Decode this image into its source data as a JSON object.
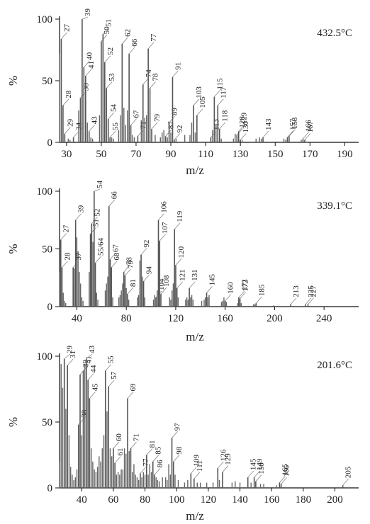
{
  "chart_data": [
    {
      "type": "bar",
      "title": "432.5°C",
      "xlabel": "m/z",
      "ylabel": "%",
      "xlim": [
        26,
        198
      ],
      "ylim": [
        0,
        100
      ],
      "xticks": [
        30,
        50,
        70,
        90,
        110,
        130,
        150,
        170,
        190
      ],
      "yticks": [
        0,
        50,
        100
      ],
      "labeled_peaks": [
        {
          "x": 27,
          "y": 84,
          "label": "27"
        },
        {
          "x": 28,
          "y": 30,
          "label": "28"
        },
        {
          "x": 29,
          "y": 7,
          "label": "29"
        },
        {
          "x": 34,
          "y": 4,
          "label": "34"
        },
        {
          "x": 38,
          "y": 36,
          "label": "38"
        },
        {
          "x": 39,
          "y": 100,
          "label": "39"
        },
        {
          "x": 40,
          "y": 61,
          "label": "40"
        },
        {
          "x": 41,
          "y": 54,
          "label": "41"
        },
        {
          "x": 43,
          "y": 9,
          "label": "43"
        },
        {
          "x": 50,
          "y": 82,
          "label": "50"
        },
        {
          "x": 51,
          "y": 88,
          "label": "51"
        },
        {
          "x": 52,
          "y": 65,
          "label": "52"
        },
        {
          "x": 53,
          "y": 44,
          "label": "53"
        },
        {
          "x": 54,
          "y": 19,
          "label": "54"
        },
        {
          "x": 55,
          "y": 4,
          "label": "55"
        },
        {
          "x": 62,
          "y": 80,
          "label": "62"
        },
        {
          "x": 66,
          "y": 72,
          "label": "66"
        },
        {
          "x": 67,
          "y": 14,
          "label": "67"
        },
        {
          "x": 71,
          "y": 5,
          "label": "71"
        },
        {
          "x": 74,
          "y": 47,
          "label": "74"
        },
        {
          "x": 77,
          "y": 76,
          "label": "77"
        },
        {
          "x": 78,
          "y": 44,
          "label": "78"
        },
        {
          "x": 79,
          "y": 11,
          "label": "79"
        },
        {
          "x": 87,
          "y": 5,
          "label": "87"
        },
        {
          "x": 89,
          "y": 16,
          "label": "89"
        },
        {
          "x": 91,
          "y": 53,
          "label": "91"
        },
        {
          "x": 92,
          "y": 2,
          "label": "92"
        },
        {
          "x": 103,
          "y": 30,
          "label": "103"
        },
        {
          "x": 105,
          "y": 22,
          "label": "105"
        },
        {
          "x": 113,
          "y": 4,
          "label": "113"
        },
        {
          "x": 115,
          "y": 37,
          "label": "115"
        },
        {
          "x": 117,
          "y": 30,
          "label": "117"
        },
        {
          "x": 118,
          "y": 11,
          "label": "118"
        },
        {
          "x": 128,
          "y": 6,
          "label": "128"
        },
        {
          "x": 129,
          "y": 9,
          "label": "129"
        },
        {
          "x": 130,
          "y": 2,
          "label": "130"
        },
        {
          "x": 143,
          "y": 4,
          "label": "143"
        },
        {
          "x": 157,
          "y": 4,
          "label": "157"
        },
        {
          "x": 158,
          "y": 5,
          "label": "158"
        },
        {
          "x": 166,
          "y": 3,
          "label": "166"
        },
        {
          "x": 167,
          "y": 2,
          "label": "167"
        }
      ],
      "minor_peaks": [
        {
          "x": 26,
          "y": 72
        },
        {
          "x": 31,
          "y": 3
        },
        {
          "x": 32,
          "y": 2
        },
        {
          "x": 37,
          "y": 26
        },
        {
          "x": 42,
          "y": 16
        },
        {
          "x": 44,
          "y": 4
        },
        {
          "x": 45,
          "y": 3
        },
        {
          "x": 49,
          "y": 22
        },
        {
          "x": 56,
          "y": 4
        },
        {
          "x": 57,
          "y": 3
        },
        {
          "x": 60,
          "y": 10
        },
        {
          "x": 61,
          "y": 22
        },
        {
          "x": 63,
          "y": 28
        },
        {
          "x": 64,
          "y": 14
        },
        {
          "x": 65,
          "y": 26
        },
        {
          "x": 68,
          "y": 6
        },
        {
          "x": 69,
          "y": 4
        },
        {
          "x": 73,
          "y": 18
        },
        {
          "x": 75,
          "y": 20
        },
        {
          "x": 76,
          "y": 22
        },
        {
          "x": 81,
          "y": 6
        },
        {
          "x": 84,
          "y": 4
        },
        {
          "x": 85,
          "y": 8
        },
        {
          "x": 86,
          "y": 10
        },
        {
          "x": 88,
          "y": 4
        },
        {
          "x": 90,
          "y": 8
        },
        {
          "x": 93,
          "y": 3
        },
        {
          "x": 98,
          "y": 6
        },
        {
          "x": 101,
          "y": 6
        },
        {
          "x": 102,
          "y": 16
        },
        {
          "x": 104,
          "y": 8
        },
        {
          "x": 114,
          "y": 10
        },
        {
          "x": 116,
          "y": 14
        },
        {
          "x": 119,
          "y": 3
        },
        {
          "x": 126,
          "y": 3
        },
        {
          "x": 127,
          "y": 7
        },
        {
          "x": 131,
          "y": 2
        },
        {
          "x": 139,
          "y": 3
        },
        {
          "x": 141,
          "y": 4
        },
        {
          "x": 142,
          "y": 3
        },
        {
          "x": 155,
          "y": 3
        },
        {
          "x": 156,
          "y": 2
        },
        {
          "x": 165,
          "y": 2
        }
      ]
    },
    {
      "type": "bar",
      "title": "339.1°C",
      "xlabel": "m/z",
      "ylabel": "%",
      "xlim": [
        26,
        268
      ],
      "ylim": [
        0,
        100
      ],
      "xticks": [
        40,
        80,
        120,
        160,
        200,
        240
      ],
      "yticks": [
        0,
        50,
        100
      ],
      "labeled_peaks": [
        {
          "x": 27,
          "y": 58,
          "label": "27"
        },
        {
          "x": 28,
          "y": 34,
          "label": "28"
        },
        {
          "x": 37,
          "y": 34,
          "label": "37"
        },
        {
          "x": 39,
          "y": 75,
          "label": "39"
        },
        {
          "x": 51,
          "y": 63,
          "label": "51"
        },
        {
          "x": 52,
          "y": 72,
          "label": "52"
        },
        {
          "x": 54,
          "y": 100,
          "label": "54"
        },
        {
          "x": 55,
          "y": 38,
          "label": "55/64"
        },
        {
          "x": 66,
          "y": 87,
          "label": "66"
        },
        {
          "x": 67,
          "y": 41,
          "label": "67"
        },
        {
          "x": 68,
          "y": 34,
          "label": "68"
        },
        {
          "x": 78,
          "y": 30,
          "label": "78"
        },
        {
          "x": 79,
          "y": 27,
          "label": "79"
        },
        {
          "x": 81,
          "y": 11,
          "label": "81"
        },
        {
          "x": 92,
          "y": 45,
          "label": "92"
        },
        {
          "x": 94,
          "y": 22,
          "label": "94"
        },
        {
          "x": 104,
          "y": 8,
          "label": "104"
        },
        {
          "x": 106,
          "y": 75,
          "label": "106"
        },
        {
          "x": 107,
          "y": 57,
          "label": "107"
        },
        {
          "x": 108,
          "y": 11,
          "label": "108"
        },
        {
          "x": 119,
          "y": 67,
          "label": "119"
        },
        {
          "x": 120,
          "y": 36,
          "label": "120"
        },
        {
          "x": 121,
          "y": 16,
          "label": "121"
        },
        {
          "x": 131,
          "y": 16,
          "label": "131"
        },
        {
          "x": 145,
          "y": 12,
          "label": "145"
        },
        {
          "x": 160,
          "y": 5,
          "label": "160"
        },
        {
          "x": 171,
          "y": 8,
          "label": "171"
        },
        {
          "x": 172,
          "y": 7,
          "label": "172"
        },
        {
          "x": 185,
          "y": 3,
          "label": "185"
        },
        {
          "x": 213,
          "y": 2,
          "label": "213"
        },
        {
          "x": 225,
          "y": 2,
          "label": "225"
        },
        {
          "x": 227,
          "y": 2,
          "label": "227"
        }
      ],
      "minor_peaks": [
        {
          "x": 26,
          "y": 30
        },
        {
          "x": 29,
          "y": 12
        },
        {
          "x": 30,
          "y": 5
        },
        {
          "x": 31,
          "y": 3
        },
        {
          "x": 38,
          "y": 33
        },
        {
          "x": 40,
          "y": 60
        },
        {
          "x": 41,
          "y": 48
        },
        {
          "x": 42,
          "y": 30
        },
        {
          "x": 43,
          "y": 20
        },
        {
          "x": 44,
          "y": 8
        },
        {
          "x": 45,
          "y": 5
        },
        {
          "x": 50,
          "y": 30
        },
        {
          "x": 53,
          "y": 56
        },
        {
          "x": 56,
          "y": 12
        },
        {
          "x": 57,
          "y": 6
        },
        {
          "x": 63,
          "y": 14
        },
        {
          "x": 64,
          "y": 20
        },
        {
          "x": 65,
          "y": 26
        },
        {
          "x": 69,
          "y": 8
        },
        {
          "x": 74,
          "y": 8
        },
        {
          "x": 75,
          "y": 10
        },
        {
          "x": 76,
          "y": 14
        },
        {
          "x": 77,
          "y": 20
        },
        {
          "x": 80,
          "y": 16
        },
        {
          "x": 82,
          "y": 6
        },
        {
          "x": 89,
          "y": 8
        },
        {
          "x": 90,
          "y": 10
        },
        {
          "x": 91,
          "y": 40
        },
        {
          "x": 93,
          "y": 26
        },
        {
          "x": 95,
          "y": 8
        },
        {
          "x": 102,
          "y": 6
        },
        {
          "x": 103,
          "y": 10
        },
        {
          "x": 105,
          "y": 14
        },
        {
          "x": 115,
          "y": 8
        },
        {
          "x": 116,
          "y": 6
        },
        {
          "x": 117,
          "y": 14
        },
        {
          "x": 118,
          "y": 20
        },
        {
          "x": 122,
          "y": 8
        },
        {
          "x": 128,
          "y": 6
        },
        {
          "x": 129,
          "y": 8
        },
        {
          "x": 130,
          "y": 6
        },
        {
          "x": 132,
          "y": 8
        },
        {
          "x": 133,
          "y": 10
        },
        {
          "x": 134,
          "y": 6
        },
        {
          "x": 141,
          "y": 5
        },
        {
          "x": 143,
          "y": 6
        },
        {
          "x": 144,
          "y": 8
        },
        {
          "x": 146,
          "y": 8
        },
        {
          "x": 147,
          "y": 10
        },
        {
          "x": 157,
          "y": 4
        },
        {
          "x": 158,
          "y": 5
        },
        {
          "x": 159,
          "y": 8
        },
        {
          "x": 161,
          "y": 4
        },
        {
          "x": 170,
          "y": 3
        },
        {
          "x": 173,
          "y": 3
        },
        {
          "x": 183,
          "y": 2
        },
        {
          "x": 184,
          "y": 2
        },
        {
          "x": 199,
          "y": 1
        }
      ]
    },
    {
      "type": "bar",
      "title": "201.6°C",
      "xlabel": "m/z",
      "ylabel": "%",
      "xlim": [
        26,
        215
      ],
      "ylim": [
        0,
        100
      ],
      "xticks": [
        40,
        60,
        80,
        100,
        120,
        140,
        160,
        180,
        200
      ],
      "yticks": [
        0,
        50,
        100
      ],
      "labeled_peaks": [
        {
          "x": 29,
          "y": 98,
          "label": "29"
        },
        {
          "x": 31,
          "y": 93,
          "label": "31"
        },
        {
          "x": 38,
          "y": 48,
          "label": "38"
        },
        {
          "x": 39,
          "y": 86,
          "label": "39"
        },
        {
          "x": 41,
          "y": 89,
          "label": "41"
        },
        {
          "x": 43,
          "y": 98,
          "label": "43"
        },
        {
          "x": 44,
          "y": 82,
          "label": "44"
        },
        {
          "x": 45,
          "y": 68,
          "label": "45"
        },
        {
          "x": 55,
          "y": 89,
          "label": "55"
        },
        {
          "x": 57,
          "y": 77,
          "label": "57"
        },
        {
          "x": 60,
          "y": 30,
          "label": "60"
        },
        {
          "x": 61,
          "y": 19,
          "label": "61"
        },
        {
          "x": 69,
          "y": 68,
          "label": "69"
        },
        {
          "x": 71,
          "y": 30,
          "label": "71"
        },
        {
          "x": 77,
          "y": 11,
          "label": "77"
        },
        {
          "x": 81,
          "y": 25,
          "label": "81"
        },
        {
          "x": 85,
          "y": 20,
          "label": "85"
        },
        {
          "x": 86,
          "y": 10,
          "label": "86"
        },
        {
          "x": 97,
          "y": 38,
          "label": "97"
        },
        {
          "x": 98,
          "y": 20,
          "label": "98"
        },
        {
          "x": 109,
          "y": 11,
          "label": "109"
        },
        {
          "x": 111,
          "y": 7,
          "label": "111"
        },
        {
          "x": 126,
          "y": 15,
          "label": "126"
        },
        {
          "x": 129,
          "y": 12,
          "label": "129"
        },
        {
          "x": 145,
          "y": 8,
          "label": "145"
        },
        {
          "x": 149,
          "y": 8,
          "label": "149"
        },
        {
          "x": 150,
          "y": 5,
          "label": "150"
        },
        {
          "x": 165,
          "y": 4,
          "label": "165"
        },
        {
          "x": 166,
          "y": 3,
          "label": "166"
        },
        {
          "x": 205,
          "y": 2,
          "label": "205"
        }
      ],
      "minor_peaks": [
        {
          "x": 26,
          "y": 20
        },
        {
          "x": 27,
          "y": 94
        },
        {
          "x": 28,
          "y": 76
        },
        {
          "x": 30,
          "y": 60
        },
        {
          "x": 32,
          "y": 40
        },
        {
          "x": 33,
          "y": 16
        },
        {
          "x": 34,
          "y": 10
        },
        {
          "x": 35,
          "y": 6
        },
        {
          "x": 36,
          "y": 8
        },
        {
          "x": 37,
          "y": 14
        },
        {
          "x": 40,
          "y": 40
        },
        {
          "x": 42,
          "y": 94
        },
        {
          "x": 46,
          "y": 30
        },
        {
          "x": 47,
          "y": 20
        },
        {
          "x": 48,
          "y": 14
        },
        {
          "x": 49,
          "y": 12
        },
        {
          "x": 50,
          "y": 16
        },
        {
          "x": 51,
          "y": 24
        },
        {
          "x": 52,
          "y": 20
        },
        {
          "x": 53,
          "y": 30
        },
        {
          "x": 54,
          "y": 40
        },
        {
          "x": 56,
          "y": 58
        },
        {
          "x": 58,
          "y": 30
        },
        {
          "x": 59,
          "y": 24
        },
        {
          "x": 62,
          "y": 10
        },
        {
          "x": 63,
          "y": 12
        },
        {
          "x": 64,
          "y": 10
        },
        {
          "x": 65,
          "y": 14
        },
        {
          "x": 66,
          "y": 14
        },
        {
          "x": 67,
          "y": 30
        },
        {
          "x": 68,
          "y": 26
        },
        {
          "x": 70,
          "y": 28
        },
        {
          "x": 72,
          "y": 12
        },
        {
          "x": 73,
          "y": 18
        },
        {
          "x": 74,
          "y": 10
        },
        {
          "x": 75,
          "y": 8
        },
        {
          "x": 76,
          "y": 6
        },
        {
          "x": 78,
          "y": 8
        },
        {
          "x": 79,
          "y": 12
        },
        {
          "x": 80,
          "y": 10
        },
        {
          "x": 82,
          "y": 10
        },
        {
          "x": 83,
          "y": 18
        },
        {
          "x": 84,
          "y": 12
        },
        {
          "x": 87,
          "y": 8
        },
        {
          "x": 88,
          "y": 6
        },
        {
          "x": 89,
          "y": 5
        },
        {
          "x": 91,
          "y": 8
        },
        {
          "x": 93,
          "y": 8
        },
        {
          "x": 94,
          "y": 6
        },
        {
          "x": 95,
          "y": 18
        },
        {
          "x": 96,
          "y": 10
        },
        {
          "x": 99,
          "y": 10
        },
        {
          "x": 101,
          "y": 6
        },
        {
          "x": 105,
          "y": 4
        },
        {
          "x": 107,
          "y": 6
        },
        {
          "x": 113,
          "y": 4
        },
        {
          "x": 115,
          "y": 4
        },
        {
          "x": 119,
          "y": 4
        },
        {
          "x": 123,
          "y": 4
        },
        {
          "x": 127,
          "y": 6
        },
        {
          "x": 135,
          "y": 4
        },
        {
          "x": 137,
          "y": 5
        },
        {
          "x": 140,
          "y": 4
        },
        {
          "x": 147,
          "y": 4
        },
        {
          "x": 153,
          "y": 3
        },
        {
          "x": 155,
          "y": 3
        },
        {
          "x": 163,
          "y": 2
        }
      ]
    }
  ]
}
